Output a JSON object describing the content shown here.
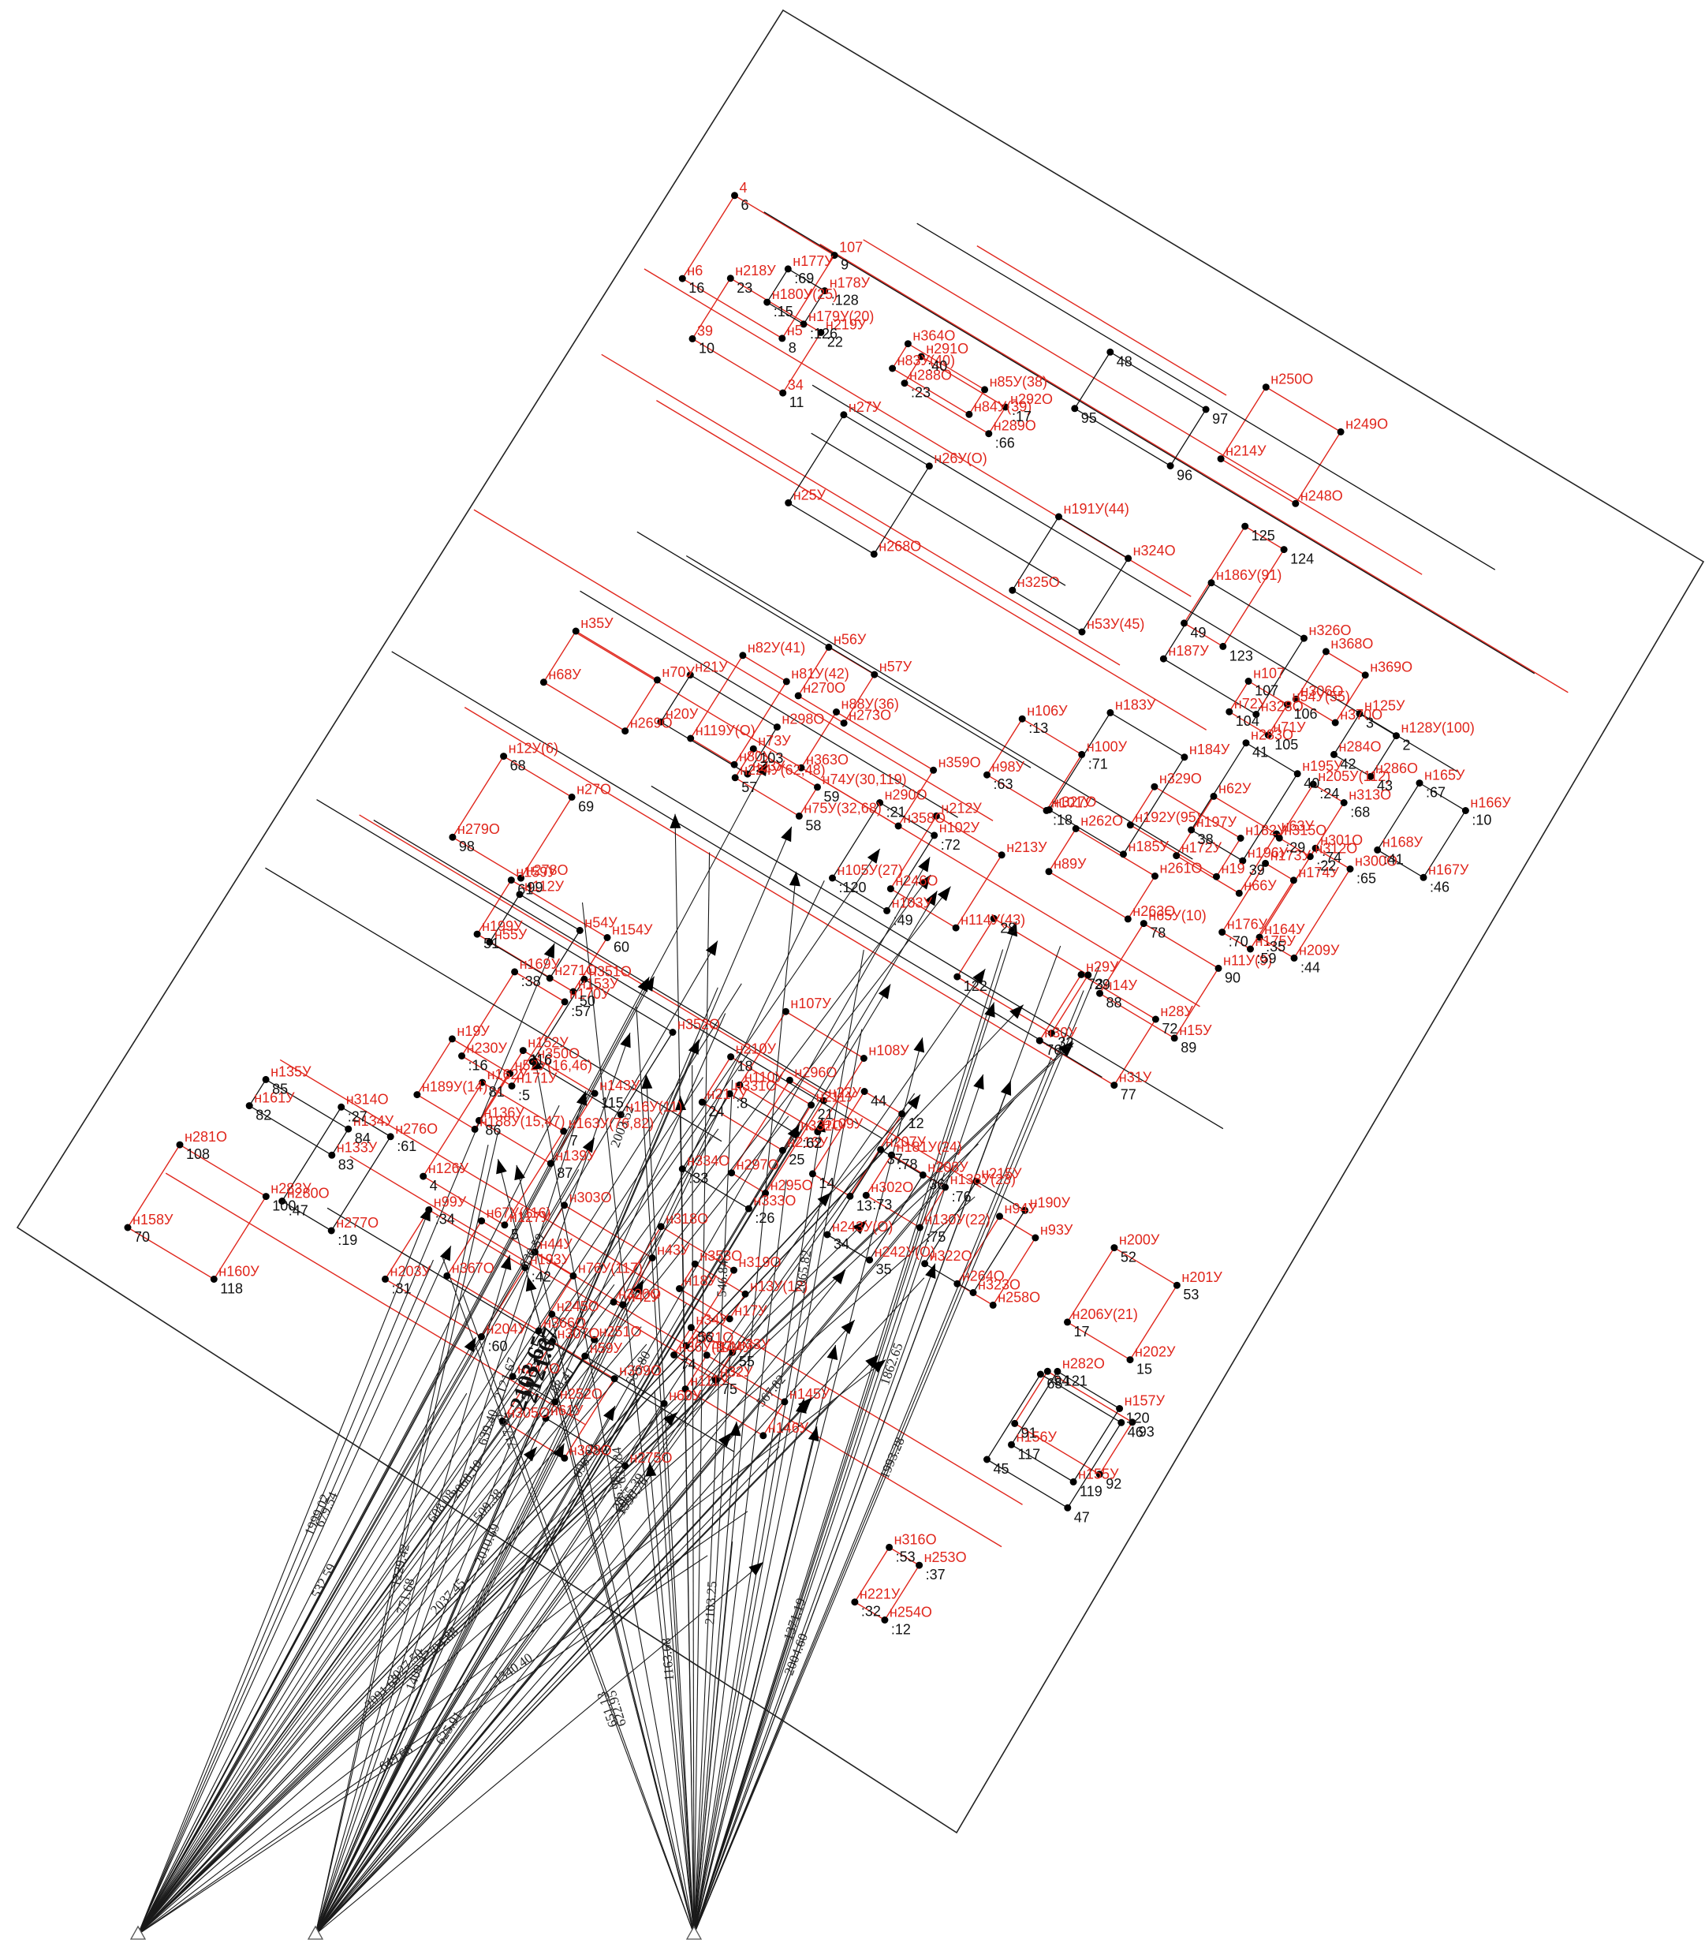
{
  "diagram": {
    "colors": {
      "red_label": "#e0261c",
      "black_label": "#111111",
      "lines": "#1a1a1a"
    },
    "labels_red": [
      "н183У",
      "н184У",
      "н185У",
      "н327О",
      "н186У(91)",
      "н326О",
      "н328О",
      "н187У",
      "н329О",
      "н182У",
      "н19",
      "н192У(95)",
      "н27У",
      "н26У(О)",
      "н268О",
      "н25У",
      "н35У",
      "н70У",
      "н269О",
      "н68У",
      "н67У(116)",
      "н76У(117)",
      "н366О",
      "н367О",
      "н368О",
      "н369О",
      "н370О",
      "н306О",
      "н307О",
      "н309О",
      "н308О",
      "н305О",
      "н303О",
      "н43У",
      "н42У",
      "н44У",
      "н94У",
      "н93У",
      "н258О",
      "н264О",
      "н262О",
      "н261О",
      "н263О",
      "н89У",
      "н88У(36)",
      "н359О",
      "н358О",
      "н363О",
      "н364О",
      "н85У(38)",
      "н84У(39)",
      "н83У(40)",
      "н82У(41)",
      "н81У(42)",
      "н80У",
      "н119У(О)",
      "н318О",
      "н319О",
      "н321О",
      "н320О",
      "н212У",
      "н213У",
      "н114У(43)",
      "н246О",
      "н245О",
      "н251О",
      "н252О",
      "н247О",
      "н250О",
      "н249О",
      "н248О",
      "н214У",
      "н215У",
      "н190У",
      "н323О",
      "н322О",
      "н191У(44)",
      "н324О",
      "н53У(45)",
      "н325О",
      "н296О",
      "н22У",
      "н295О",
      "н297О",
      "н21У",
      "н298О",
      "н23У",
      "н20У",
      "н19У",
      "н52У(16,46)",
      "н188У(15,47)",
      "н189У(14)",
      "н351О",
      "н352О",
      "н16У(11)",
      "н350О",
      "н353О",
      "н13У(12)",
      "н17У",
      "н18У",
      "н107У",
      "н108У",
      "н109У",
      "н110У",
      "н144У",
      "н145У",
      "н146У",
      "н111У",
      "н112У",
      "н54У",
      "н271О",
      "н55У",
      "н56У",
      "н57У",
      "н273О",
      "н270О",
      "н59У",
      "н60У",
      "н275О",
      "н61У",
      "н62У",
      "н63У",
      "н66У",
      "н172У",
      "н173У",
      "н174У",
      "н175У",
      "н176У",
      "н177У",
      "н178У",
      "н179У(20)",
      "н180У(25)",
      "н181У(24)",
      "н138У(23)",
      "н130У(22)",
      "н302О",
      "н301О",
      "н300О",
      "н209У",
      "н164У",
      "н165У",
      "н166У",
      "н167У",
      "н168У",
      "н169У",
      "н170У",
      "н171У",
      "н230У",
      "н331О",
      "н332О",
      "н333О",
      "н334О",
      "н291О",
      "н292О",
      "н289О",
      "н288О",
      "н290О",
      "н102У",
      "н103У",
      "н105У(27)",
      "н106У",
      "н100У",
      "н101У",
      "н98У",
      "н99У",
      "н193У",
      "н204У",
      "н203У",
      "н205У(112)",
      "н313О",
      "н312О",
      "н315О",
      "н316О",
      "н253О",
      "н254О",
      "н221У",
      "н314О",
      "н276О",
      "н277О",
      "н280О",
      "н282О",
      "н157У",
      "н155У",
      "н156У",
      "н152У",
      "н143У",
      "н139У",
      "н136У",
      "н135У",
      "н134У",
      "н133У",
      "н161У",
      "н162У",
      "н163У(76,82)",
      "н127У",
      "н126У",
      "н125У",
      "н128У(100)",
      "н286О",
      "н284О",
      "н283О",
      "н195У",
      "н196У",
      "н197У",
      "н207У",
      "н208У",
      "н242У(О)",
      "н243У(О)",
      "н107",
      "н54У(55)",
      "н71У",
      "н72У",
      "н73У",
      "н74У(30,119)",
      "н75У(32,68)",
      "н224У(62,48)",
      "н34У",
      "н33У",
      "н32У",
      "н36У(97)",
      "н29У",
      "н28У",
      "н31У",
      "н30У",
      "н65У(10)",
      "н11У(9)",
      "н15У",
      "н14У",
      "н12У(6)",
      "н27О",
      "н278О",
      "н279О",
      "н281О",
      "н283У",
      "н160У",
      "н158У",
      "н159У",
      "н154У",
      "н153У",
      "н199У",
      "н200У",
      "н201У",
      "н202У",
      "н206У(21)",
      "н210У",
      "н211У",
      "н216У",
      "н217У",
      "н218У",
      "н219У",
      "34",
      "39",
      "4",
      "107",
      "н5",
      "н6"
    ],
    "labels_black": [
      "91",
      "92",
      "93",
      "94",
      "95",
      "96",
      "97",
      "48",
      "49",
      "123",
      "124",
      "125",
      "122",
      "32",
      "29",
      "28",
      "14",
      "13",
      "12",
      "44",
      "45",
      "47",
      "46",
      "65",
      "16",
      "8",
      "9",
      "6",
      "10",
      "11",
      "22",
      "23",
      "24",
      "25",
      "21",
      "18",
      "17",
      "15",
      "53",
      "52",
      "51",
      "50",
      "60",
      "61",
      "70",
      "118",
      "100",
      "108",
      "98",
      "99",
      "69",
      "68",
      "88",
      "89",
      "90",
      "78",
      "76",
      "77",
      "72",
      "73",
      "74",
      "75",
      "55",
      "56",
      "57",
      "58",
      "59",
      "103",
      "104",
      "105",
      "106",
      "107",
      "34",
      "35",
      "36",
      "37",
      "38",
      "39",
      "40",
      "41",
      "42",
      "43",
      "2",
      "3",
      "4",
      "5",
      "7",
      "81",
      "82",
      "83",
      "84",
      "85",
      "86",
      "87",
      "115",
      "116",
      "117",
      "119",
      "120",
      "121",
      ":47",
      ":19",
      ":61",
      ":27",
      ":32",
      ":12",
      ":37",
      ":53",
      ":29",
      ":22",
      ":68",
      ":24",
      ":31",
      ":60",
      ":42",
      ":34",
      ":63",
      ":18",
      ":71",
      ":13",
      ":120",
      ":49",
      ":72",
      ":21",
      ":23",
      ":66",
      ":17",
      ":40",
      ":33",
      ":26",
      ":62",
      ":8",
      ":16",
      ":5",
      ":57",
      ":38",
      ":41",
      ":46",
      ":10",
      ":67",
      ":35",
      ":44",
      ":65",
      ":74",
      ":73",
      ":75",
      ":76",
      ":78",
      ":15",
      ":126",
      ":128",
      ":69",
      ":70",
      ":59"
    ],
    "labels_distance": [
      "2027.50",
      "2010.69",
      "1993.28",
      "1999.02",
      "2003.52",
      "2004.60",
      "2037.45",
      "2065.39",
      "2065.82",
      "2068.10",
      "1229.42",
      "1163.68",
      "788.41",
      "771.68",
      "717.62",
      "704.88",
      "696.33",
      "686.98",
      "679.54",
      "655.80",
      "651.13",
      "649.68",
      "639.40",
      "631.84",
      "630.59",
      "625.91",
      "622.95",
      "608.08",
      "567.82",
      "546.84",
      "532.59",
      "1409.45",
      "1371.19",
      "1340.40",
      "2121.67",
      "2103.25",
      "2091.63",
      "1990.76",
      "1862.65",
      "1509.38"
    ],
    "big_labels": [
      "2103.65",
      "2121.67"
    ]
  }
}
